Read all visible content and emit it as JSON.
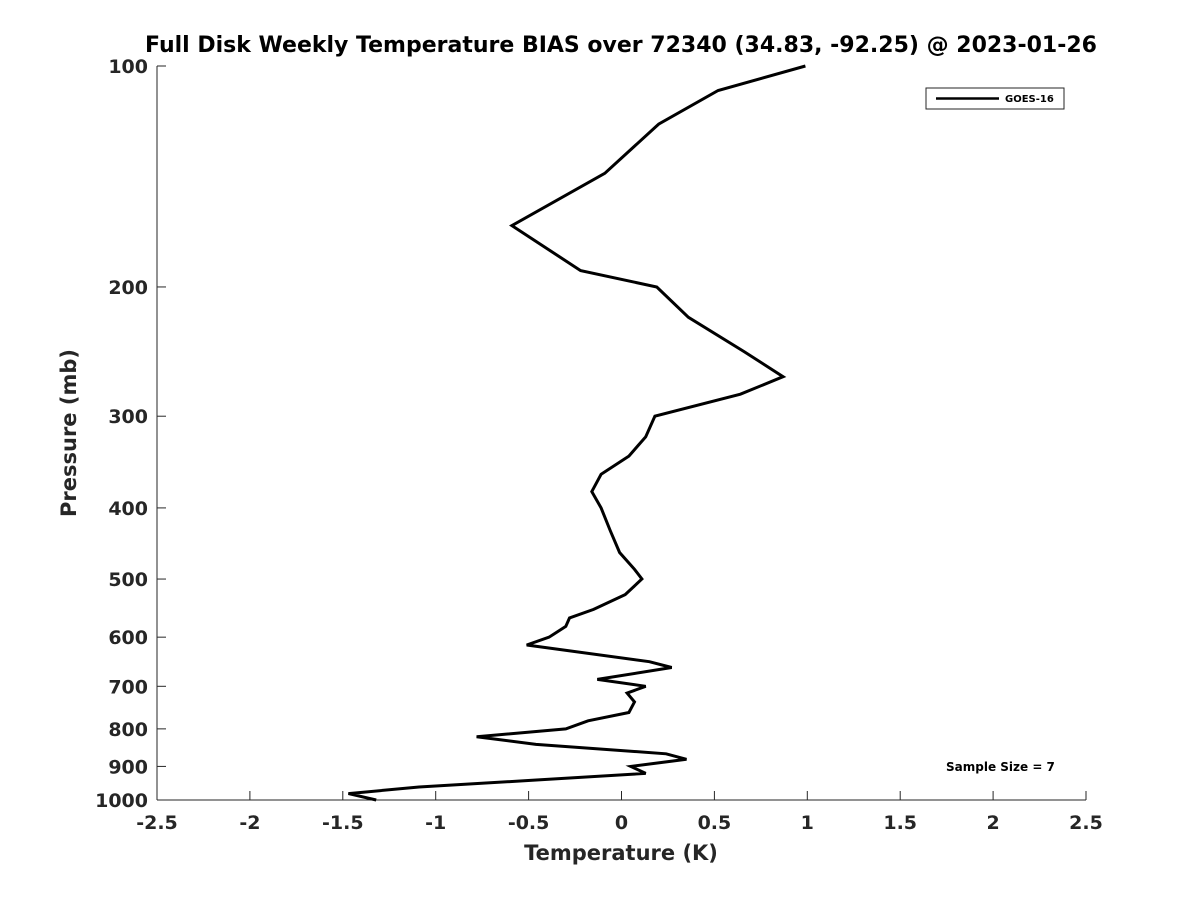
{
  "chart_data": {
    "type": "line",
    "title": "Full Disk Weekly Temperature BIAS over 72340 (34.83, -92.25) @ 2023-01-26",
    "xlabel": "Temperature (K)",
    "ylabel": "Pressure (mb)",
    "xlim": [
      -2.5,
      2.5
    ],
    "ylim": [
      100,
      1000
    ],
    "y_scale": "log",
    "y_reversed": true,
    "grid": false,
    "legend_position": "top-right",
    "x_ticks": [
      -2.5,
      -2,
      -1.5,
      -1,
      -0.5,
      0,
      0.5,
      1,
      1.5,
      2,
      2.5
    ],
    "x_tick_labels": [
      "-2.5",
      "-2",
      "-1.5",
      "-1",
      "-0.5",
      "0",
      "0.5",
      "1",
      "1.5",
      "2",
      "2.5"
    ],
    "y_ticks": [
      100,
      200,
      300,
      400,
      500,
      600,
      700,
      800,
      900,
      1000
    ],
    "y_tick_labels": [
      "100",
      "200",
      "300",
      "400",
      "500",
      "600",
      "700",
      "800",
      "900",
      "1000"
    ],
    "annotation": "Sample Size = 7",
    "line_color": "#000000",
    "series": [
      {
        "name": "GOES-16",
        "points": [
          [
            0.99,
            100
          ],
          [
            0.52,
            108
          ],
          [
            0.2,
            120
          ],
          [
            -0.09,
            140
          ],
          [
            -0.59,
            165
          ],
          [
            -0.22,
            190
          ],
          [
            0.19,
            200
          ],
          [
            0.36,
            220
          ],
          [
            0.66,
            245
          ],
          [
            0.87,
            265
          ],
          [
            0.64,
            280
          ],
          [
            0.18,
            300
          ],
          [
            0.13,
            320
          ],
          [
            0.04,
            340
          ],
          [
            -0.11,
            360
          ],
          [
            -0.16,
            380
          ],
          [
            -0.11,
            400
          ],
          [
            -0.06,
            430
          ],
          [
            -0.01,
            460
          ],
          [
            0.07,
            485
          ],
          [
            0.11,
            500
          ],
          [
            0.02,
            525
          ],
          [
            -0.15,
            550
          ],
          [
            -0.28,
            565
          ],
          [
            -0.3,
            580
          ],
          [
            -0.39,
            600
          ],
          [
            -0.51,
            615
          ],
          [
            0.15,
            648
          ],
          [
            0.27,
            660
          ],
          [
            -0.13,
            685
          ],
          [
            0.13,
            700
          ],
          [
            0.03,
            715
          ],
          [
            0.07,
            735
          ],
          [
            0.04,
            760
          ],
          [
            -0.18,
            780
          ],
          [
            -0.3,
            800
          ],
          [
            -0.78,
            820
          ],
          [
            -0.46,
            840
          ],
          [
            0.24,
            865
          ],
          [
            0.35,
            880
          ],
          [
            0.05,
            900
          ],
          [
            0.13,
            920
          ],
          [
            -0.48,
            940
          ],
          [
            -1.09,
            960
          ],
          [
            -1.47,
            980
          ],
          [
            -1.32,
            1000
          ]
        ]
      }
    ]
  }
}
